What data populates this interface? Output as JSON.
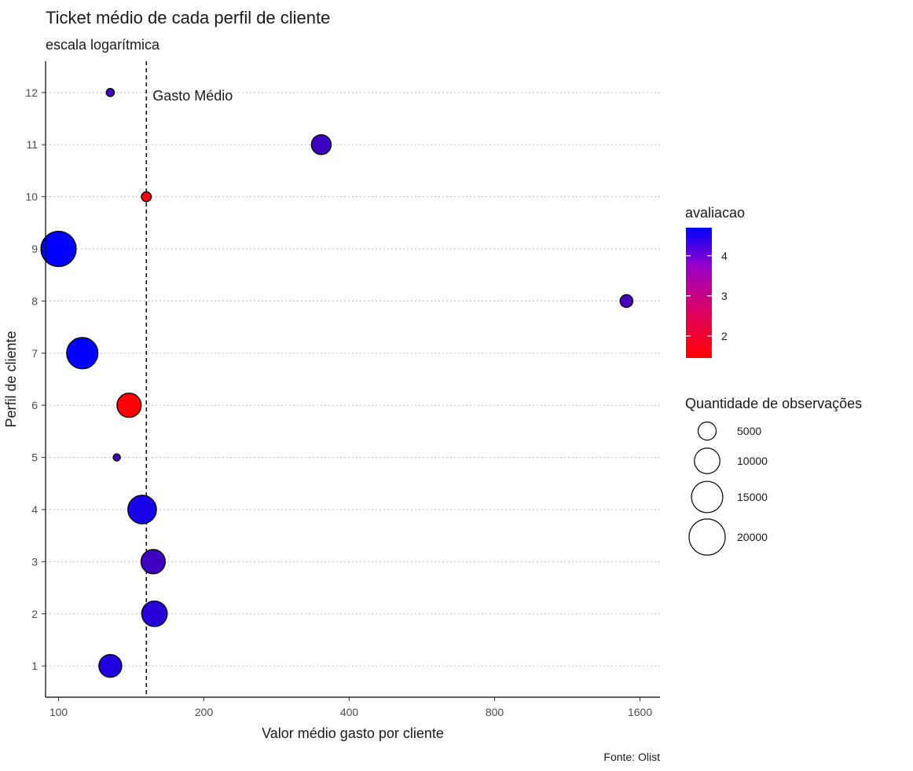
{
  "chart_data": {
    "type": "scatter",
    "title": "Ticket médio de cada perfil de cliente",
    "subtitle": "escala logarítmica",
    "xlabel": "Valor médio gasto por cliente",
    "ylabel": "Perfil de cliente",
    "caption": "Fonte: Olist",
    "x_scale": "log2",
    "xlim": [
      94,
      1760
    ],
    "ylim": [
      0.4,
      12.6
    ],
    "x_ticks": [
      100,
      200,
      400,
      800,
      1600
    ],
    "x_tick_labels": [
      "100",
      "200",
      "400",
      "800",
      "1600"
    ],
    "y_ticks": [
      1,
      2,
      3,
      4,
      5,
      6,
      7,
      8,
      9,
      10,
      11,
      12
    ],
    "y_tick_labels": [
      "1",
      "2",
      "3",
      "4",
      "5",
      "6",
      "7",
      "8",
      "9",
      "10",
      "11",
      "12"
    ],
    "grid": "horizontal dotted",
    "reference_line": {
      "x": 152,
      "label": "Gasto Médio"
    },
    "points": [
      {
        "perfil": 1,
        "x": 128,
        "avaliacao": 4.3,
        "n": 8000
      },
      {
        "perfil": 2,
        "x": 158,
        "avaliacao": 4.2,
        "n": 10000
      },
      {
        "perfil": 3,
        "x": 157,
        "avaliacao": 3.9,
        "n": 9000
      },
      {
        "perfil": 4,
        "x": 149,
        "avaliacao": 4.4,
        "n": 12500
      },
      {
        "perfil": 5,
        "x": 132,
        "avaliacao": 3.9,
        "n": 800
      },
      {
        "perfil": 6,
        "x": 140,
        "avaliacao": 1.5,
        "n": 9000
      },
      {
        "perfil": 7,
        "x": 112,
        "avaliacao": 4.7,
        "n": 15000
      },
      {
        "perfil": 8,
        "x": 1500,
        "avaliacao": 3.8,
        "n": 2500
      },
      {
        "perfil": 9,
        "x": 100,
        "avaliacao": 4.7,
        "n": 19000
      },
      {
        "perfil": 10,
        "x": 152,
        "avaliacao": 1.6,
        "n": 1500
      },
      {
        "perfil": 11,
        "x": 350,
        "avaliacao": 3.9,
        "n": 6000
      },
      {
        "perfil": 12,
        "x": 128,
        "avaliacao": 3.9,
        "n": 1000
      }
    ],
    "color_legend": {
      "title": "avaliacao",
      "low_color": "#ff0000",
      "high_color": "#0000ff",
      "min": 1.45,
      "max": 4.7,
      "breaks": [
        2,
        3,
        4
      ],
      "break_labels": [
        "2",
        "3",
        "4"
      ]
    },
    "size_legend": {
      "title": "Quantidade de observações",
      "breaks": [
        5000,
        10000,
        15000,
        20000
      ],
      "break_labels": [
        "5000",
        "10000",
        "15000",
        "20000"
      ]
    },
    "legend_position": "right"
  }
}
